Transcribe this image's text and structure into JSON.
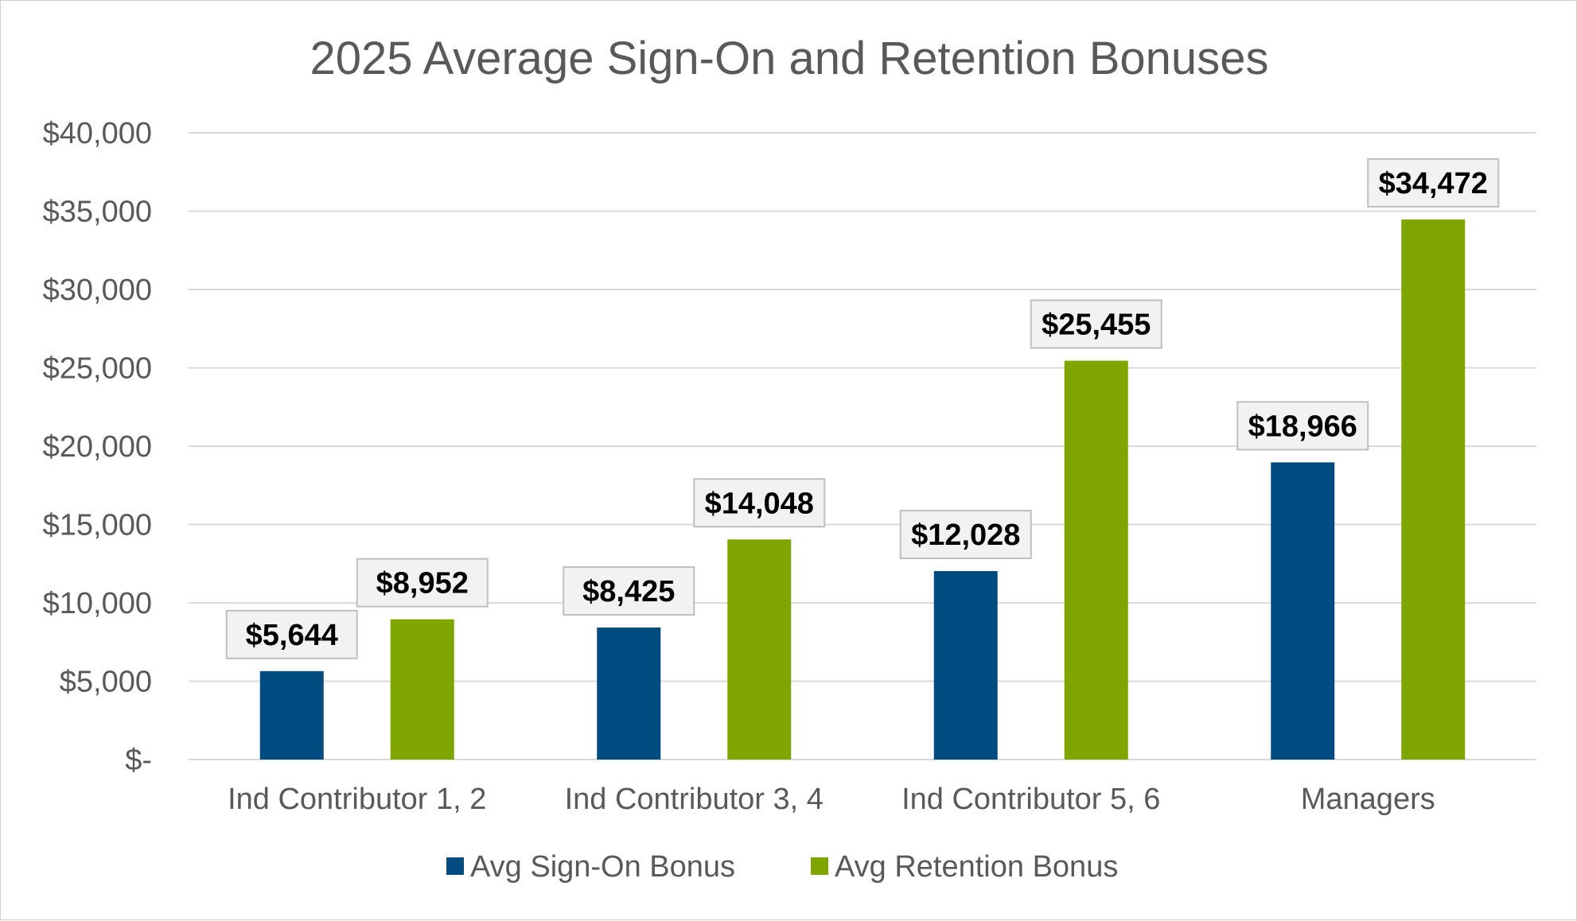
{
  "chart_data": {
    "type": "bar",
    "title": "2025 Average Sign-On and Retention Bonuses",
    "categories": [
      "Ind Contributor 1, 2",
      "Ind Contributor 3, 4",
      "Ind Contributor 5, 6",
      "Managers"
    ],
    "series": [
      {
        "name": "Avg Sign-On Bonus",
        "color": "#004b7f",
        "values": [
          5644,
          8425,
          12028,
          18966
        ],
        "labels": [
          "$5,644",
          "$8,425",
          "$12,028",
          "$18,966"
        ]
      },
      {
        "name": "Avg Retention Bonus",
        "color": "#7fa600",
        "values": [
          8952,
          14048,
          25455,
          34472
        ],
        "labels": [
          "$8,952",
          "$14,048",
          "$25,455",
          "$34,472"
        ]
      }
    ],
    "ylim": [
      0,
      40000
    ],
    "y_ticks": [
      0,
      5000,
      10000,
      15000,
      20000,
      25000,
      30000,
      35000,
      40000
    ],
    "y_tick_labels": [
      "$-",
      "$5,000",
      "$10,000",
      "$15,000",
      "$20,000",
      "$25,000",
      "$30,000",
      "$35,000",
      "$40,000"
    ],
    "grid": true,
    "legend_position": "bottom"
  }
}
